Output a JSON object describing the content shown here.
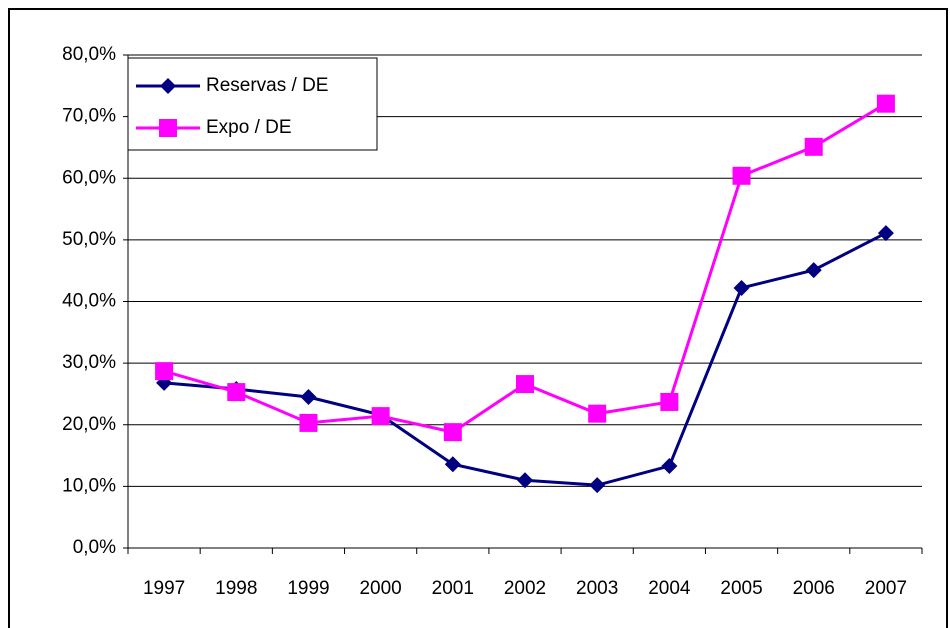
{
  "chart_data": {
    "type": "line",
    "categories": [
      "1997",
      "1998",
      "1999",
      "2000",
      "2001",
      "2002",
      "2003",
      "2004",
      "2005",
      "2006",
      "2007"
    ],
    "series": [
      {
        "name": "Reservas / DE",
        "color": "#000080",
        "marker": "diamond",
        "values": [
          26.8,
          25.8,
          24.5,
          21.6,
          13.6,
          11.0,
          10.2,
          13.3,
          42.2,
          45.1,
          51.1
        ]
      },
      {
        "name": "Expo / DE",
        "color": "#ff00ff",
        "marker": "square",
        "values": [
          28.7,
          25.3,
          20.3,
          21.4,
          18.8,
          26.6,
          21.8,
          23.7,
          60.4,
          65.1,
          72.1
        ]
      }
    ],
    "ylim": [
      0,
      80
    ],
    "yticks": [
      {
        "value": 0,
        "label": "0,0%"
      },
      {
        "value": 10,
        "label": "10,0%"
      },
      {
        "value": 20,
        "label": "20,0%"
      },
      {
        "value": 30,
        "label": "30,0%"
      },
      {
        "value": 40,
        "label": "40,0%"
      },
      {
        "value": 50,
        "label": "50,0%"
      },
      {
        "value": 60,
        "label": "60,0%"
      },
      {
        "value": 70,
        "label": "70,0%"
      },
      {
        "value": 80,
        "label": "80,0%"
      }
    ],
    "grid": true,
    "legend": "top-left"
  }
}
